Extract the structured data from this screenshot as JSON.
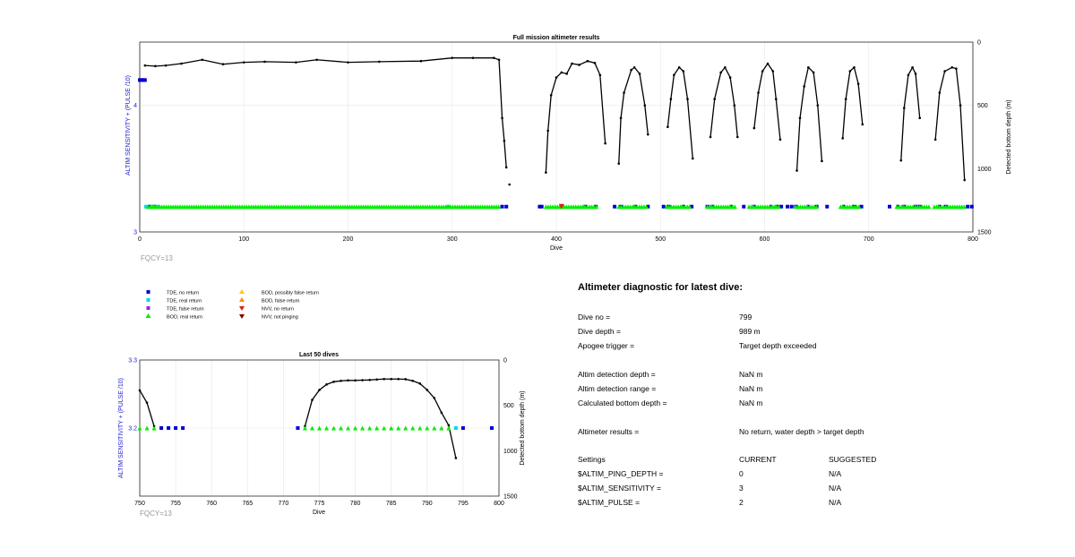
{
  "top_chart": {
    "title": "Full mission altimeter results",
    "xlabel": "Dive",
    "ylabel_left": "ALTIM SENSITIVITY + (PULSE /10)",
    "ylabel_right": "Detected bottom depth (m)",
    "x_ticks": [
      "0",
      "100",
      "200",
      "300",
      "400",
      "500",
      "600",
      "700",
      "800"
    ],
    "left_ticks": [
      "3",
      "4"
    ],
    "right_ticks": [
      "0",
      "500",
      "1000",
      "1500"
    ],
    "fqcy_label": "FQCY=13"
  },
  "bottom_chart": {
    "title": "Last 50 dives",
    "xlabel": "Dive",
    "ylabel_left": "ALTIM SENSITIVITY + (PULSE /10)",
    "ylabel_right": "Detected bottom depth (m)",
    "x_ticks": [
      "750",
      "755",
      "760",
      "765",
      "770",
      "775",
      "780",
      "785",
      "790",
      "795",
      "800"
    ],
    "left_ticks": [
      "3.2",
      "3.3"
    ],
    "right_ticks": [
      "0",
      "500",
      "1000",
      "1500"
    ],
    "fqcy_label": "FQCY=13"
  },
  "legend": {
    "items": [
      {
        "label": "TDE, no return",
        "marker": "square",
        "color": "#0000d0"
      },
      {
        "label": "TDE, real return",
        "marker": "square",
        "color": "#00d8e8"
      },
      {
        "label": "TDE, false return",
        "marker": "square",
        "color": "#8a2be2"
      },
      {
        "label": "BOD, real return",
        "marker": "triangle-up",
        "color": "#00ee00"
      },
      {
        "label": "BOD, possibly false return",
        "marker": "triangle-up",
        "color": "#ffcc00"
      },
      {
        "label": "BOD, false return",
        "marker": "triangle-up",
        "color": "#ff8c00"
      },
      {
        "label": "NVV, no return",
        "marker": "triangle-down",
        "color": "#e02000"
      },
      {
        "label": "NVV, not pinging",
        "marker": "triangle-down",
        "color": "#800000"
      }
    ]
  },
  "diagnostic": {
    "title": "Altimeter diagnostic for latest dive:",
    "rows": [
      [
        "Dive no =",
        "799",
        ""
      ],
      [
        "Dive depth =",
        "989 m",
        ""
      ],
      [
        "Apogee trigger =",
        "Target depth exceeded",
        ""
      ],
      [
        "Altim detection depth =",
        "NaN m",
        ""
      ],
      [
        "Altim detection range =",
        "NaN m",
        ""
      ],
      [
        "Calculated bottom depth =",
        "NaN m",
        ""
      ],
      [
        "Altimeter results =",
        "No return, water depth > target depth",
        ""
      ],
      [
        "Settings",
        "CURRENT",
        "SUGGESTED"
      ],
      [
        "$ALTIM_PING_DEPTH =",
        "0",
        "N/A"
      ],
      [
        "$ALTIM_SENSITIVITY =",
        "3",
        "N/A"
      ],
      [
        "$ALTIM_PULSE =",
        "2",
        "N/A"
      ]
    ]
  },
  "chart_data": [
    {
      "type": "line",
      "title": "Full mission altimeter results",
      "xlabel": "Dive",
      "ylabel": "ALTIM SENSITIVITY + (PULSE /10)",
      "ylabel_right": "Detected bottom depth (m)",
      "xlim": [
        0,
        800
      ],
      "ylim_left": [
        3,
        4.5
      ],
      "ylim_right_reversed": [
        0,
        1500
      ],
      "grid": true,
      "series": [
        {
          "name": "Detected bottom depth",
          "axis": "right",
          "color": "#000000",
          "segments": [
            [
              [
                5,
                185
              ],
              [
                15,
                190
              ],
              [
                25,
                185
              ],
              [
                40,
                170
              ],
              [
                60,
                140
              ],
              [
                80,
                175
              ],
              [
                100,
                160
              ],
              [
                120,
                155
              ],
              [
                150,
                160
              ],
              [
                170,
                140
              ],
              [
                200,
                160
              ],
              [
                230,
                155
              ],
              [
                270,
                150
              ],
              [
                300,
                125
              ],
              [
                320,
                125
              ],
              [
                340,
                125
              ],
              [
                345,
                140
              ],
              [
                348,
                600
              ],
              [
                350,
                780
              ],
              [
                352,
                990
              ]
            ],
            [
              [
                355,
                1125
              ]
            ],
            [
              [
                390,
                1030
              ],
              [
                392,
                700
              ],
              [
                395,
                420
              ],
              [
                400,
                280
              ],
              [
                405,
                240
              ],
              [
                410,
                250
              ],
              [
                415,
                170
              ],
              [
                422,
                180
              ],
              [
                430,
                150
              ],
              [
                437,
                165
              ],
              [
                442,
                260
              ],
              [
                447,
                800
              ]
            ],
            [
              [
                460,
                960
              ],
              [
                462,
                600
              ],
              [
                465,
                400
              ],
              [
                472,
                220
              ],
              [
                475,
                200
              ],
              [
                480,
                250
              ],
              [
                485,
                500
              ],
              [
                488,
                730
              ]
            ],
            [
              [
                507,
                670
              ],
              [
                510,
                450
              ],
              [
                513,
                260
              ],
              [
                518,
                200
              ],
              [
                522,
                230
              ],
              [
                526,
                450
              ],
              [
                531,
                920
              ]
            ],
            [
              [
                548,
                750
              ],
              [
                552,
                450
              ],
              [
                558,
                240
              ],
              [
                562,
                200
              ],
              [
                567,
                280
              ],
              [
                571,
                500
              ],
              [
                574,
                750
              ]
            ],
            [
              [
                590,
                680
              ],
              [
                594,
                400
              ],
              [
                598,
                230
              ],
              [
                603,
                170
              ],
              [
                608,
                230
              ],
              [
                611,
                450
              ],
              [
                615,
                770
              ]
            ],
            [
              [
                631,
                1015
              ],
              [
                634,
                600
              ],
              [
                638,
                350
              ],
              [
                642,
                200
              ],
              [
                647,
                240
              ],
              [
                651,
                500
              ],
              [
                655,
                940
              ]
            ],
            [
              [
                675,
                760
              ],
              [
                678,
                450
              ],
              [
                682,
                230
              ],
              [
                686,
                200
              ],
              [
                690,
                330
              ],
              [
                694,
                650
              ]
            ],
            [
              [
                731,
                935
              ],
              [
                734,
                520
              ],
              [
                738,
                260
              ],
              [
                742,
                200
              ],
              [
                745,
                250
              ],
              [
                749,
                600
              ]
            ],
            [
              [
                764,
                770
              ],
              [
                768,
                400
              ],
              [
                773,
                230
              ],
              [
                780,
                200
              ],
              [
                784,
                210
              ],
              [
                788,
                500
              ],
              [
                792,
                1090
              ]
            ]
          ]
        },
        {
          "name": "TDE, no return",
          "axis": "left",
          "color": "#0000d0",
          "points_x": [
            0,
            1,
            2,
            3,
            4,
            5,
            10,
            14,
            348,
            352,
            384,
            386,
            428,
            438,
            456,
            462,
            476,
            488,
            503,
            508,
            522,
            530,
            545,
            550,
            568,
            580,
            590,
            606,
            612,
            616,
            622,
            626,
            630,
            642,
            650,
            660,
            676,
            686,
            693,
            720,
            728,
            734,
            745,
            749,
            768,
            774,
            795,
            799
          ],
          "points_y": [
            4.2,
            4.2,
            4.2,
            4.2,
            4.2,
            4.2,
            3.2,
            3.2,
            3.2,
            3.2,
            3.2,
            3.2,
            3.2,
            3.2,
            3.2,
            3.2,
            3.2,
            3.2,
            3.2,
            3.2,
            3.2,
            3.2,
            3.2,
            3.2,
            3.2,
            3.2,
            3.2,
            3.2,
            3.2,
            3.2,
            3.2,
            3.2,
            3.2,
            3.2,
            3.2,
            3.2,
            3.2,
            3.2,
            3.2,
            3.2,
            3.2,
            3.2,
            3.2,
            3.2,
            3.2,
            3.2,
            3.2,
            3.2
          ]
        },
        {
          "name": "TDE, real return",
          "axis": "left",
          "color": "#00d8e8",
          "points_x": [
            6,
            12,
            18,
            296
          ],
          "points_y": [
            3.2,
            3.2,
            3.2,
            3.2
          ]
        },
        {
          "name": "BOD, real return",
          "axis": "left",
          "color": "#00ee00",
          "ranges": [
            [
              8,
              345
            ],
            [
              390,
              440
            ],
            [
              460,
              488
            ],
            [
              506,
              530
            ],
            [
              545,
              572
            ],
            [
              585,
              614
            ],
            [
              630,
              652
            ],
            [
              673,
              692
            ],
            [
              727,
              760
            ],
            [
              763,
              792
            ]
          ],
          "y": 3.2
        },
        {
          "name": "NVV, no return",
          "axis": "left",
          "color": "#e02000",
          "points_x": [
            405
          ],
          "points_y": [
            3.2
          ]
        }
      ]
    },
    {
      "type": "line",
      "title": "Last 50 dives",
      "xlabel": "Dive",
      "ylabel": "ALTIM SENSITIVITY + (PULSE /10)",
      "ylabel_right": "Detected bottom depth (m)",
      "xlim": [
        750,
        800
      ],
      "ylim_left": [
        3.1,
        3.3
      ],
      "ylim_right_reversed": [
        0,
        1500
      ],
      "grid": true,
      "series": [
        {
          "name": "Detected bottom depth",
          "axis": "right",
          "color": "#000000",
          "segments": [
            [
              [
                750,
                335
              ],
              [
                751,
                470
              ],
              [
                752,
                730
              ]
            ],
            [
              [
                773,
                730
              ],
              [
                774,
                440
              ],
              [
                775,
                330
              ],
              [
                776,
                270
              ],
              [
                777,
                240
              ],
              [
                778,
                230
              ],
              [
                779,
                225
              ],
              [
                780,
                225
              ],
              [
                781,
                222
              ],
              [
                782,
                220
              ],
              [
                783,
                215
              ],
              [
                784,
                210
              ],
              [
                785,
                210
              ],
              [
                786,
                210
              ],
              [
                787,
                212
              ],
              [
                788,
                230
              ],
              [
                789,
                260
              ],
              [
                790,
                330
              ],
              [
                791,
                420
              ],
              [
                792,
                580
              ],
              [
                793,
                720
              ],
              [
                794,
                1080
              ]
            ]
          ]
        },
        {
          "name": "BOD, real return",
          "axis": "left",
          "color": "#00ee00",
          "points_x": [
            750,
            751,
            752,
            773,
            774,
            775,
            776,
            777,
            778,
            779,
            780,
            781,
            782,
            783,
            784,
            785,
            786,
            787,
            788,
            789,
            790,
            791,
            792,
            793
          ],
          "points_y": [
            3.2,
            3.2,
            3.2,
            3.2,
            3.2,
            3.2,
            3.2,
            3.2,
            3.2,
            3.2,
            3.2,
            3.2,
            3.2,
            3.2,
            3.2,
            3.2,
            3.2,
            3.2,
            3.2,
            3.2,
            3.2,
            3.2,
            3.2,
            3.2
          ]
        },
        {
          "name": "TDE, no return",
          "axis": "left",
          "color": "#0000d0",
          "points_x": [
            753,
            754,
            755,
            756,
            772,
            795,
            799
          ],
          "points_y": [
            3.2,
            3.2,
            3.2,
            3.2,
            3.2,
            3.2,
            3.2
          ]
        },
        {
          "name": "TDE, real return",
          "axis": "left",
          "color": "#00d8e8",
          "points_x": [
            794
          ],
          "points_y": [
            3.2
          ]
        }
      ]
    }
  ]
}
